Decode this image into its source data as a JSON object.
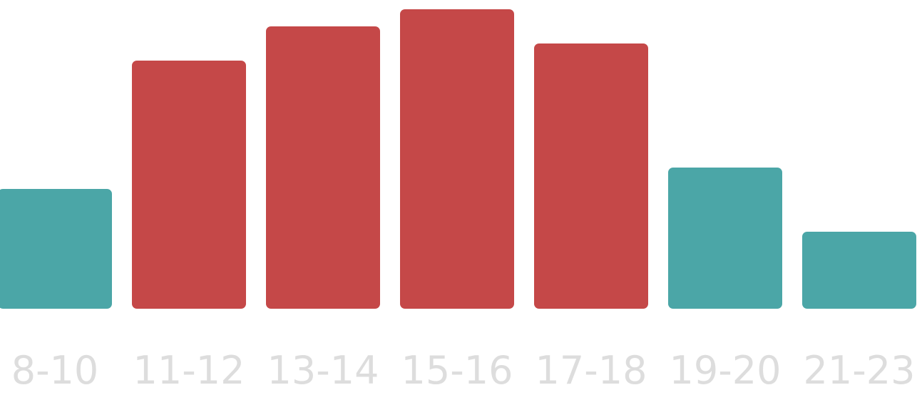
{
  "chart_data": {
    "type": "bar",
    "title": "",
    "xlabel": "",
    "ylabel": "",
    "categories": [
      "8-10",
      "11-12",
      "13-14",
      "15-16",
      "17-18",
      "19-20",
      "21-23"
    ],
    "values": [
      28,
      58,
      66,
      70,
      62,
      33,
      18
    ],
    "highlight": [
      false,
      true,
      true,
      true,
      true,
      false,
      false
    ],
    "ylim": [
      0,
      70
    ],
    "grid": false,
    "legend": "none"
  },
  "colors": {
    "normal_bar": "#4BA6A7",
    "highlight_bar": "#C54848",
    "tick_label": "#DDDDDD"
  }
}
